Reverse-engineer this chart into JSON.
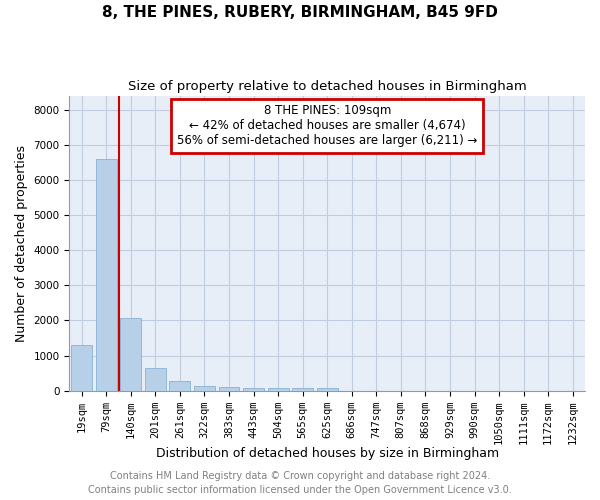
{
  "title": "8, THE PINES, RUBERY, BIRMINGHAM, B45 9FD",
  "subtitle": "Size of property relative to detached houses in Birmingham",
  "xlabel": "Distribution of detached houses by size in Birmingham",
  "ylabel": "Number of detached properties",
  "bar_color": "#b8cfe8",
  "bar_edge_color": "#7aaad0",
  "categories": [
    "19sqm",
    "79sqm",
    "140sqm",
    "201sqm",
    "261sqm",
    "322sqm",
    "383sqm",
    "443sqm",
    "504sqm",
    "565sqm",
    "625sqm",
    "686sqm",
    "747sqm",
    "807sqm",
    "868sqm",
    "929sqm",
    "990sqm",
    "1050sqm",
    "1111sqm",
    "1172sqm",
    "1232sqm"
  ],
  "values": [
    1310,
    6600,
    2080,
    650,
    290,
    140,
    100,
    80,
    80,
    80,
    80,
    0,
    0,
    0,
    0,
    0,
    0,
    0,
    0,
    0,
    0
  ],
  "ylim": [
    0,
    8400
  ],
  "yticks": [
    0,
    1000,
    2000,
    3000,
    4000,
    5000,
    6000,
    7000,
    8000
  ],
  "property_line_x": 1.5,
  "property_line_color": "#cc0000",
  "annotation_line1": "8 THE PINES: 109sqm",
  "annotation_line2": "← 42% of detached houses are smaller (4,674)",
  "annotation_line3": "56% of semi-detached houses are larger (6,211) →",
  "annotation_box_color": "#cc0000",
  "bg_color": "#e8eef8",
  "grid_color": "#c0cce0",
  "footer_line1": "Contains HM Land Registry data © Crown copyright and database right 2024.",
  "footer_line2": "Contains public sector information licensed under the Open Government Licence v3.0.",
  "title_fontsize": 11,
  "subtitle_fontsize": 9.5,
  "axis_label_fontsize": 9,
  "tick_fontsize": 7.5,
  "annotation_fontsize": 8.5,
  "footer_fontsize": 7
}
